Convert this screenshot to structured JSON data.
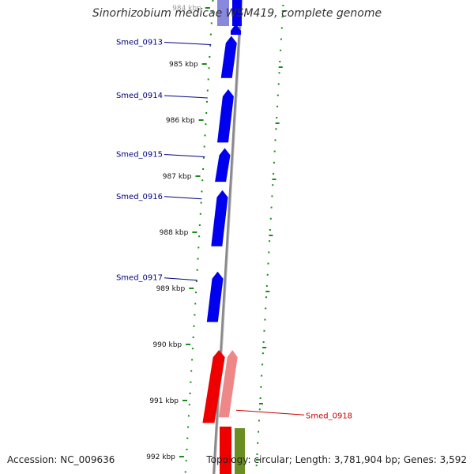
{
  "title": "Sinorhizobium medicae WSM419, complete genome",
  "accession": "Accession: NC_009636",
  "summary": "Topology: circular; Length: 3,781,904 bp; Genes: 3,592",
  "colors": {
    "forward_cds": "#0000ee",
    "forward_cds_pale": "#8888dd",
    "highlight_cds": "#ee0000",
    "highlight_cds_pale": "#ee8888",
    "other_cds": "#6b8e23",
    "tick": "#1a8a1a",
    "backbone": "#888888",
    "label_blue": "#000080",
    "label_red": "#cc0000"
  },
  "ticks": [
    {
      "label": "984 kbp",
      "kbp": 984
    },
    {
      "label": "985 kbp",
      "kbp": 985
    },
    {
      "label": "986 kbp",
      "kbp": 986
    },
    {
      "label": "987 kbp",
      "kbp": 987
    },
    {
      "label": "988 kbp",
      "kbp": 988
    },
    {
      "label": "989 kbp",
      "kbp": 989
    },
    {
      "label": "990 kbp",
      "kbp": 990
    },
    {
      "label": "991 kbp",
      "kbp": 991
    },
    {
      "label": "992 kbp",
      "kbp": 992
    }
  ],
  "genes": [
    {
      "name": "Smed_0913",
      "start_kbp": 984.5,
      "end_kbp": 985.25
    },
    {
      "name": "Smed_0914",
      "start_kbp": 985.45,
      "end_kbp": 986.4
    },
    {
      "name": "Smed_0915",
      "start_kbp": 986.5,
      "end_kbp": 987.1
    },
    {
      "name": "Smed_0916",
      "start_kbp": 987.25,
      "end_kbp": 988.25
    },
    {
      "name": "Smed_0917",
      "start_kbp": 988.7,
      "end_kbp": 989.6
    },
    {
      "name": "Smed_0918",
      "start_kbp": 990.1,
      "end_kbp": 991.4
    }
  ]
}
